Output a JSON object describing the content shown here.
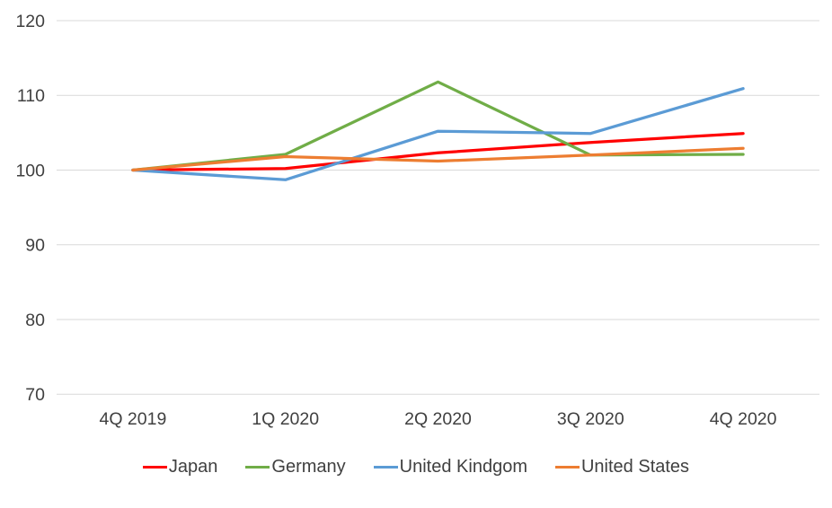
{
  "chart_data": {
    "type": "line",
    "title": "",
    "xlabel": "",
    "ylabel": "",
    "categories": [
      "4Q 2019",
      "1Q 2020",
      "2Q 2020",
      "3Q 2020",
      "4Q 2020"
    ],
    "series": [
      {
        "name": "Japan",
        "color": "#FF0000",
        "values": [
          100,
          100.2,
          102.3,
          103.7,
          104.9
        ]
      },
      {
        "name": "Germany",
        "color": "#70AD47",
        "values": [
          100,
          102.1,
          111.8,
          102.0,
          102.1
        ]
      },
      {
        "name": "United Kindgom",
        "color": "#5B9BD5",
        "values": [
          100,
          98.7,
          105.2,
          104.9,
          110.9
        ]
      },
      {
        "name": "United States",
        "color": "#ED7D31",
        "values": [
          100,
          101.8,
          101.2,
          102.0,
          102.9
        ]
      }
    ],
    "y_ticks": [
      70,
      80,
      90,
      100,
      110,
      120
    ],
    "ylim": [
      70,
      120
    ],
    "grid": "horizontal",
    "gridline_color": "#D9D9D9",
    "tick_label_color": "#404040",
    "legend_position": "bottom"
  }
}
